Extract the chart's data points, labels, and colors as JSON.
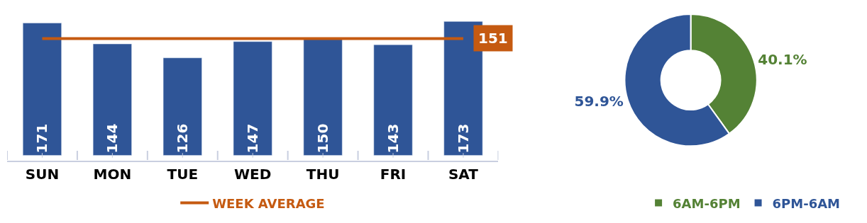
{
  "chart_data": [
    {
      "type": "bar",
      "categories": [
        "SUN",
        "MON",
        "TUE",
        "WED",
        "THU",
        "FRI",
        "SAT"
      ],
      "tick_labels": "x",
      "legend": "bottom",
      "series": [
        {
          "color": "#2f5597",
          "values": [
            171,
            144,
            126,
            147,
            150,
            143,
            173
          ],
          "value_labels": [
            "171",
            "144",
            "126",
            "147",
            "150",
            "143",
            "173"
          ]
        },
        {
          "type": "line",
          "name": "WEEK AVERAGE",
          "color": "#c55a11",
          "values": [
            151,
            151,
            151,
            151,
            151,
            151,
            151
          ],
          "value_labels": [
            null,
            null,
            null,
            null,
            null,
            null,
            "151"
          ]
        }
      ]
    },
    {
      "type": "donut",
      "categories": [
        "6AM-6PM",
        "6PM-6AM"
      ],
      "values": [
        40.1,
        59.9
      ],
      "colors": [
        "#548235",
        "#2f5597"
      ],
      "value_labels": [
        "40.1%",
        "59.9%"
      ],
      "legend": "bottom right"
    }
  ]
}
